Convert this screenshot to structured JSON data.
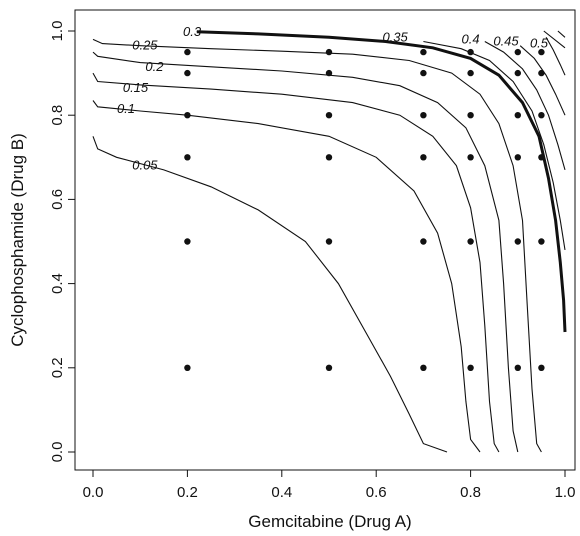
{
  "chart_data": {
    "type": "contour",
    "title": "",
    "xlabel": "Gemcitabine (Drug A)",
    "ylabel": "Cyclophosphamide (Drug B)",
    "xlim": [
      0.0,
      1.0
    ],
    "ylim": [
      0.0,
      1.0
    ],
    "x_ticks": [
      {
        "value": 0.0,
        "label": "0.0"
      },
      {
        "value": 0.2,
        "label": "0.2"
      },
      {
        "value": 0.4,
        "label": "0.4"
      },
      {
        "value": 0.6,
        "label": "0.6"
      },
      {
        "value": 0.8,
        "label": "0.8"
      },
      {
        "value": 1.0,
        "label": "1.0"
      }
    ],
    "y_ticks": [
      {
        "value": 0.0,
        "label": "0.0"
      },
      {
        "value": 0.2,
        "label": "0.2"
      },
      {
        "value": 0.4,
        "label": "0.4"
      },
      {
        "value": 0.6,
        "label": "0.6"
      },
      {
        "value": 0.8,
        "label": "0.8"
      },
      {
        "value": 1.0,
        "label": "1.0"
      }
    ],
    "grid": false,
    "contours": [
      {
        "level": "0.05",
        "bold": false,
        "label_at": [
          0.11,
          0.68
        ],
        "points": [
          [
            0.0,
            0.75
          ],
          [
            0.01,
            0.72
          ],
          [
            0.05,
            0.7
          ],
          [
            0.15,
            0.67
          ],
          [
            0.25,
            0.63
          ],
          [
            0.35,
            0.575
          ],
          [
            0.45,
            0.5
          ],
          [
            0.52,
            0.4
          ],
          [
            0.58,
            0.28
          ],
          [
            0.63,
            0.18
          ],
          [
            0.67,
            0.09
          ],
          [
            0.7,
            0.02
          ],
          [
            0.75,
            0.0
          ]
        ]
      },
      {
        "level": "0.1",
        "bold": false,
        "label_at": [
          0.07,
          0.815
        ],
        "points": [
          [
            0.0,
            0.835
          ],
          [
            0.01,
            0.82
          ],
          [
            0.1,
            0.81
          ],
          [
            0.2,
            0.8
          ],
          [
            0.35,
            0.78
          ],
          [
            0.5,
            0.75
          ],
          [
            0.6,
            0.7
          ],
          [
            0.68,
            0.62
          ],
          [
            0.73,
            0.52
          ],
          [
            0.76,
            0.4
          ],
          [
            0.78,
            0.25
          ],
          [
            0.79,
            0.12
          ],
          [
            0.8,
            0.03
          ],
          [
            0.82,
            0.0
          ]
        ]
      },
      {
        "level": "0.15",
        "bold": false,
        "label_at": [
          0.09,
          0.865
        ],
        "points": [
          [
            0.0,
            0.9
          ],
          [
            0.01,
            0.88
          ],
          [
            0.1,
            0.872
          ],
          [
            0.25,
            0.862
          ],
          [
            0.4,
            0.85
          ],
          [
            0.55,
            0.83
          ],
          [
            0.65,
            0.8
          ],
          [
            0.72,
            0.75
          ],
          [
            0.77,
            0.68
          ],
          [
            0.8,
            0.58
          ],
          [
            0.82,
            0.45
          ],
          [
            0.83,
            0.3
          ],
          [
            0.84,
            0.12
          ],
          [
            0.85,
            0.02
          ],
          [
            0.86,
            0.0
          ]
        ]
      },
      {
        "level": "0.2",
        "bold": false,
        "label_at": [
          0.13,
          0.915
        ],
        "points": [
          [
            0.0,
            0.95
          ],
          [
            0.01,
            0.94
          ],
          [
            0.1,
            0.925
          ],
          [
            0.25,
            0.915
          ],
          [
            0.4,
            0.905
          ],
          [
            0.55,
            0.89
          ],
          [
            0.65,
            0.87
          ],
          [
            0.73,
            0.83
          ],
          [
            0.79,
            0.77
          ],
          [
            0.83,
            0.68
          ],
          [
            0.86,
            0.55
          ],
          [
            0.87,
            0.4
          ],
          [
            0.88,
            0.2
          ],
          [
            0.89,
            0.05
          ],
          [
            0.9,
            0.0
          ]
        ]
      },
      {
        "level": "0.25",
        "bold": false,
        "label_at": [
          0.11,
          0.965
        ],
        "points": [
          [
            0.0,
            0.98
          ],
          [
            0.02,
            0.97
          ],
          [
            0.1,
            0.965
          ],
          [
            0.25,
            0.958
          ],
          [
            0.4,
            0.952
          ],
          [
            0.55,
            0.945
          ],
          [
            0.67,
            0.93
          ],
          [
            0.76,
            0.9
          ],
          [
            0.82,
            0.85
          ],
          [
            0.86,
            0.78
          ],
          [
            0.89,
            0.68
          ],
          [
            0.91,
            0.55
          ],
          [
            0.92,
            0.35
          ],
          [
            0.93,
            0.15
          ],
          [
            0.94,
            0.02
          ],
          [
            0.95,
            0.0
          ]
        ]
      },
      {
        "level": "0.3",
        "bold": true,
        "label_at": [
          0.21,
          0.998
        ],
        "points": [
          [
            0.22,
            0.998
          ],
          [
            0.35,
            0.993
          ],
          [
            0.5,
            0.985
          ],
          [
            0.62,
            0.975
          ],
          [
            0.72,
            0.96
          ],
          [
            0.8,
            0.935
          ],
          [
            0.86,
            0.895
          ],
          [
            0.91,
            0.83
          ],
          [
            0.945,
            0.75
          ],
          [
            0.965,
            0.65
          ],
          [
            0.98,
            0.55
          ],
          [
            0.99,
            0.45
          ],
          [
            0.997,
            0.36
          ],
          [
            1.0,
            0.285
          ]
        ]
      },
      {
        "level": "0.35",
        "bold": false,
        "label_at": [
          0.64,
          0.985
        ],
        "points": [
          [
            0.7,
            0.975
          ],
          [
            0.78,
            0.958
          ],
          [
            0.84,
            0.93
          ],
          [
            0.89,
            0.88
          ],
          [
            0.93,
            0.81
          ],
          [
            0.955,
            0.73
          ],
          [
            0.975,
            0.64
          ],
          [
            0.99,
            0.55
          ],
          [
            1.0,
            0.48
          ]
        ]
      },
      {
        "level": "0.4",
        "bold": false,
        "label_at": [
          0.8,
          0.98
        ],
        "points": [
          [
            0.83,
            0.975
          ],
          [
            0.87,
            0.95
          ],
          [
            0.91,
            0.91
          ],
          [
            0.94,
            0.86
          ],
          [
            0.965,
            0.8
          ],
          [
            0.985,
            0.73
          ],
          [
            1.0,
            0.67
          ]
        ]
      },
      {
        "level": "0.45",
        "bold": false,
        "label_at": [
          0.875,
          0.975
        ],
        "points": [
          [
            0.905,
            0.965
          ],
          [
            0.935,
            0.935
          ],
          [
            0.96,
            0.895
          ],
          [
            0.98,
            0.85
          ],
          [
            1.0,
            0.8
          ]
        ]
      },
      {
        "level": "0.5",
        "bold": false,
        "label_at": [
          0.945,
          0.97
        ],
        "points": [
          [
            0.96,
            0.985
          ],
          [
            0.975,
            0.955
          ],
          [
            0.99,
            0.92
          ],
          [
            1.0,
            0.895
          ]
        ]
      },
      {
        "level": "",
        "bold": false,
        "label_at": null,
        "points": [
          [
            0.955,
            1.0
          ],
          [
            1.0,
            0.96
          ]
        ]
      },
      {
        "level": "",
        "bold": false,
        "label_at": null,
        "points": [
          [
            0.985,
            1.0
          ],
          [
            1.0,
            0.985
          ]
        ]
      }
    ],
    "points": [
      [
        0.2,
        0.95
      ],
      [
        0.2,
        0.9
      ],
      [
        0.2,
        0.8
      ],
      [
        0.2,
        0.7
      ],
      [
        0.2,
        0.5
      ],
      [
        0.2,
        0.2
      ],
      [
        0.5,
        0.95
      ],
      [
        0.5,
        0.9
      ],
      [
        0.5,
        0.8
      ],
      [
        0.5,
        0.7
      ],
      [
        0.5,
        0.5
      ],
      [
        0.5,
        0.2
      ],
      [
        0.7,
        0.95
      ],
      [
        0.7,
        0.9
      ],
      [
        0.7,
        0.8
      ],
      [
        0.7,
        0.7
      ],
      [
        0.7,
        0.5
      ],
      [
        0.7,
        0.2
      ],
      [
        0.8,
        0.95
      ],
      [
        0.8,
        0.9
      ],
      [
        0.8,
        0.8
      ],
      [
        0.8,
        0.7
      ],
      [
        0.8,
        0.5
      ],
      [
        0.8,
        0.2
      ],
      [
        0.9,
        0.95
      ],
      [
        0.9,
        0.9
      ],
      [
        0.9,
        0.8
      ],
      [
        0.9,
        0.7
      ],
      [
        0.9,
        0.5
      ],
      [
        0.9,
        0.2
      ],
      [
        0.95,
        0.95
      ],
      [
        0.95,
        0.9
      ],
      [
        0.95,
        0.8
      ],
      [
        0.95,
        0.7
      ],
      [
        0.95,
        0.5
      ],
      [
        0.95,
        0.2
      ]
    ]
  }
}
